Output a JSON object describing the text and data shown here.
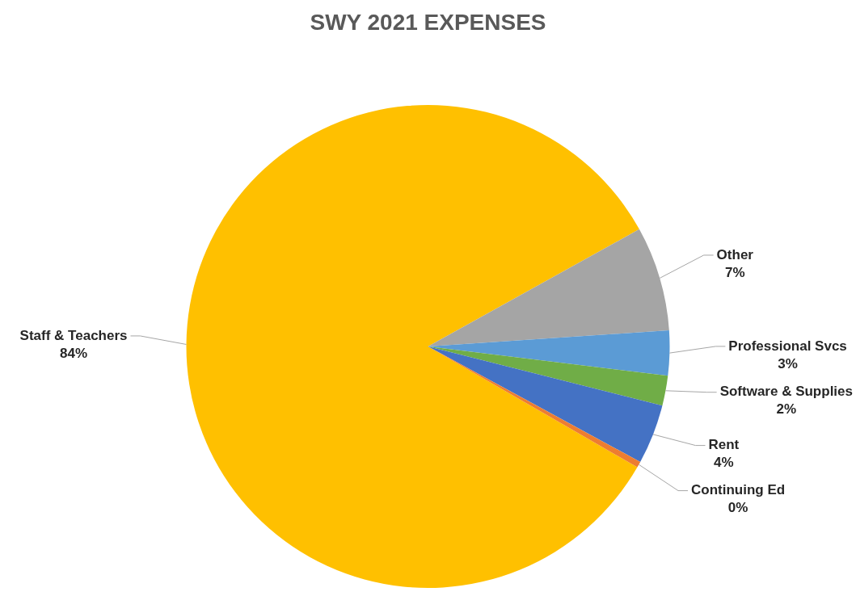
{
  "chart_data": {
    "type": "pie",
    "title": "SWY 2021 EXPENSES",
    "categories": [
      "Staff & Teachers",
      "Other",
      "Professional Svcs",
      "Software & Supplies",
      "Rent",
      "Continuing Ed"
    ],
    "values": [
      83.6,
      7,
      3,
      2,
      4,
      0.4
    ],
    "value_labels": [
      "84%",
      "7%",
      "3%",
      "2%",
      "4%",
      "0%"
    ],
    "colors": [
      "#ffc000",
      "#a5a5a5",
      "#5b9bd5",
      "#70ad47",
      "#4472c4",
      "#ed7d31"
    ],
    "legend": false
  }
}
